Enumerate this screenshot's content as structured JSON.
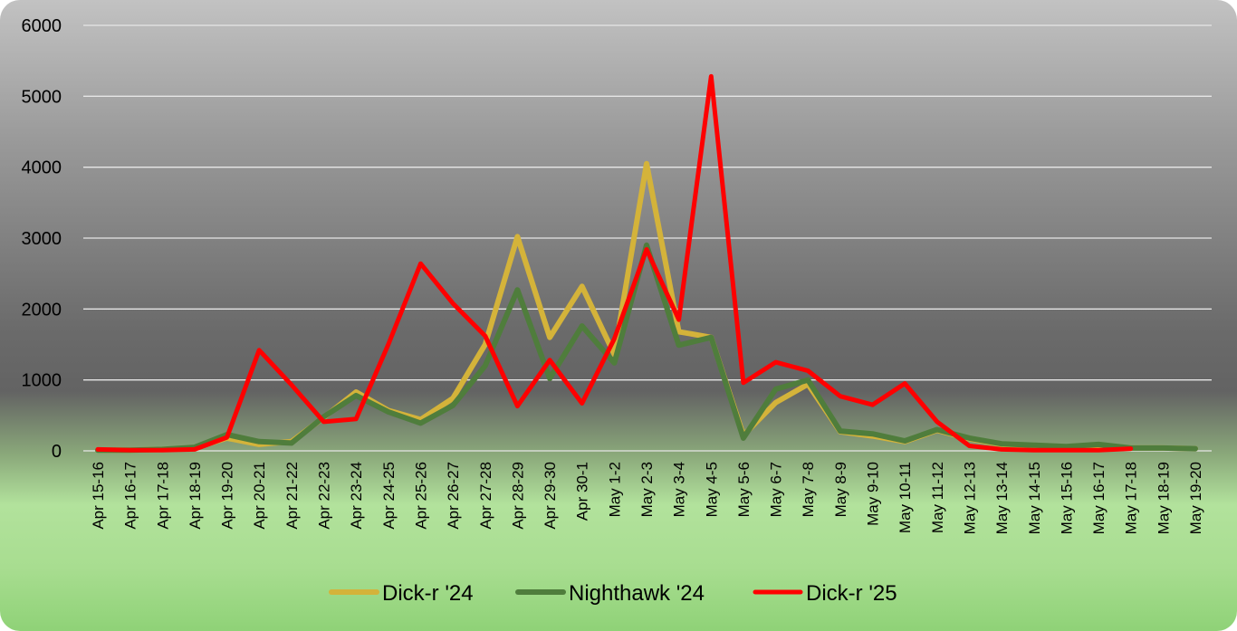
{
  "chart_data": {
    "type": "line",
    "title": "",
    "xlabel": "",
    "ylabel": "",
    "ylim": [
      0,
      6000
    ],
    "yticks": [
      0,
      1000,
      2000,
      3000,
      4000,
      5000,
      6000
    ],
    "grid": true,
    "legend_position": "bottom",
    "categories": [
      "Apr 15-16",
      "Apr 16-17",
      "Apr 17-18",
      "Apr 18-19",
      "Apr 19-20",
      "Apr 20-21",
      "Apr 21-22",
      "Apr 22-23",
      "Apr 23-24",
      "Apr 24-25",
      "Apr 25-26",
      "Apr 26-27",
      "Apr 27-28",
      "Apr 28-29",
      "Apr 29-30",
      "Apr 30-1",
      "May 1-2",
      "May 2-3",
      "May 3-4",
      "May 4-5",
      "May 5-6",
      "May 6-7",
      "May 7-8",
      "May 8-9",
      "May 9-10",
      "May 10-11",
      "May 11-12",
      "May 12-13",
      "May 13-14",
      "May 14-15",
      "May 15-16",
      "May 16-17",
      "May 17-18",
      "May 18-19",
      "May 19-20"
    ],
    "series": [
      {
        "name": "Dick-r '24",
        "color": "#d4b33a",
        "values": [
          10,
          10,
          20,
          40,
          180,
          90,
          130,
          470,
          830,
          570,
          440,
          740,
          1500,
          3020,
          1600,
          2320,
          1360,
          4050,
          1680,
          1600,
          220,
          680,
          940,
          270,
          210,
          130,
          290,
          170,
          90,
          70,
          50,
          80,
          40,
          40,
          30
        ]
      },
      {
        "name": "Nighthawk '24",
        "color": "#4f7d3c",
        "values": [
          10,
          10,
          20,
          50,
          230,
          130,
          110,
          480,
          780,
          550,
          390,
          640,
          1200,
          2270,
          1020,
          1760,
          1240,
          2900,
          1490,
          1600,
          180,
          870,
          1000,
          280,
          240,
          140,
          300,
          180,
          100,
          80,
          60,
          90,
          40,
          40,
          30
        ]
      },
      {
        "name": "Dick-r '25",
        "color": "#ff0000",
        "values": [
          20,
          10,
          10,
          20,
          190,
          1420,
          930,
          410,
          450,
          1500,
          2640,
          2080,
          1620,
          630,
          1280,
          670,
          1580,
          2840,
          1850,
          5280,
          960,
          1250,
          1130,
          770,
          650,
          950,
          410,
          70,
          20,
          10,
          10,
          10,
          30,
          null,
          null
        ]
      }
    ]
  }
}
